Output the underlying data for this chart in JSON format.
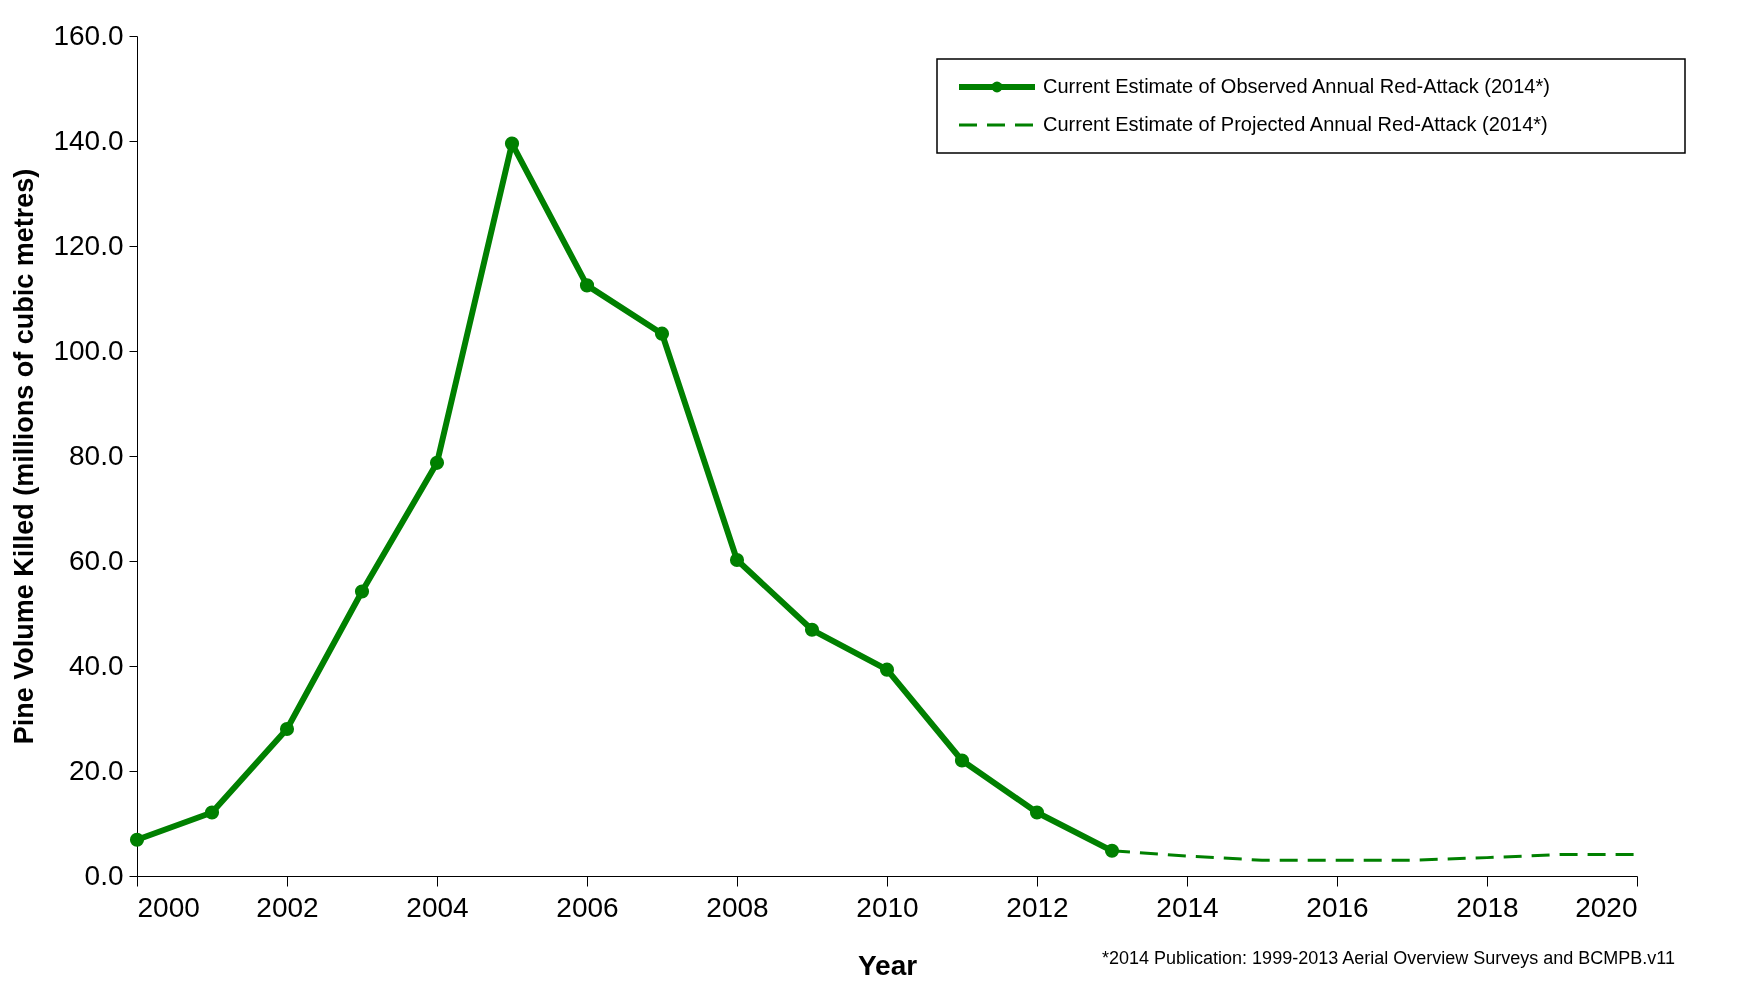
{
  "chart_data": {
    "type": "line",
    "xlabel": "Year",
    "ylabel": "Pine Volume Killed (millions of cubic metres)",
    "annotations": [
      "*2014 Publication: 1999-2013 Aerial Overview Surveys and BCMPB.v11"
    ],
    "series": [
      {
        "name": "Current Estimate of Observed Annual Red-Attack  (2014*)",
        "color": "#008000",
        "marker": "circle",
        "line_style": "solid",
        "x": [
          2000,
          2001,
          2002,
          2003,
          2004,
          2005,
          2006,
          2007,
          2008,
          2009,
          2010,
          2011,
          2012,
          2013
        ],
        "values": [
          6.9,
          12.1,
          28.0,
          54.2,
          78.7,
          139.5,
          112.5,
          103.3,
          60.2,
          46.9,
          39.3,
          22.0,
          12.1,
          4.8
        ]
      },
      {
        "name": "Current Estimate of Projected Annual Red-Attack  (2014*)",
        "color": "#008000",
        "marker": "none",
        "line_style": "dashed",
        "x": [
          2013,
          2014,
          2015,
          2016,
          2017,
          2018,
          2019,
          2020
        ],
        "values": [
          4.8,
          3.8,
          3.0,
          3.0,
          3.0,
          3.5,
          4.1,
          4.1
        ]
      }
    ],
    "xlim": [
      2000,
      2020
    ],
    "xticks": [
      2000,
      2002,
      2004,
      2006,
      2008,
      2010,
      2012,
      2014,
      2016,
      2018,
      2020
    ],
    "ylim": [
      0,
      160
    ],
    "yticks": [
      {
        "value": 0,
        "label": "0.0"
      },
      {
        "value": 20,
        "label": "20.0"
      },
      {
        "value": 40,
        "label": "40.0"
      },
      {
        "value": 60,
        "label": "60.0"
      },
      {
        "value": 80,
        "label": "80.0"
      },
      {
        "value": 100,
        "label": "100.0"
      },
      {
        "value": 120,
        "label": "120.0"
      },
      {
        "value": 140,
        "label": "140.0"
      },
      {
        "value": 160,
        "label": "160.0"
      }
    ],
    "grid": false,
    "legend": "top right"
  }
}
